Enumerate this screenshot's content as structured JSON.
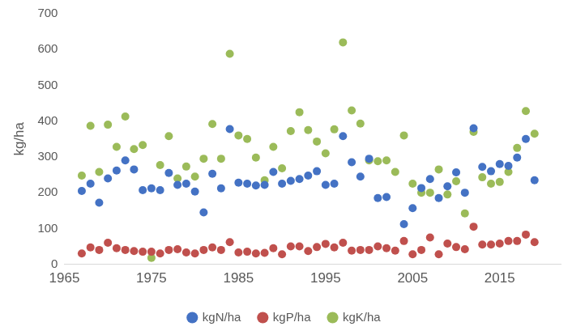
{
  "chart_data": {
    "type": "scatter",
    "y_label": "kg/ha",
    "x": [
      1967,
      1968,
      1969,
      1970,
      1971,
      1972,
      1973,
      1974,
      1975,
      1976,
      1977,
      1978,
      1979,
      1980,
      1981,
      1982,
      1983,
      1984,
      1985,
      1986,
      1987,
      1988,
      1989,
      1990,
      1991,
      1992,
      1993,
      1994,
      1995,
      1996,
      1997,
      1998,
      1999,
      2000,
      2001,
      2002,
      2003,
      2004,
      2005,
      2006,
      2007,
      2008,
      2009,
      2010,
      2011,
      2012,
      2013,
      2014,
      2015,
      2016,
      2017,
      2018,
      2019
    ],
    "series": [
      {
        "name": "kgN/ha",
        "color": "#4472c4",
        "marker": "circle",
        "values": [
          205,
          225,
          172,
          240,
          262,
          290,
          265,
          207,
          212,
          207,
          255,
          222,
          225,
          203,
          145,
          253,
          212,
          378,
          228,
          225,
          220,
          222,
          258,
          225,
          233,
          238,
          248,
          260,
          222,
          225,
          358,
          285,
          245,
          295,
          185,
          188,
          null,
          112,
          157,
          213,
          238,
          185,
          218,
          257,
          200,
          380,
          272,
          260,
          280,
          275,
          298,
          350,
          235
        ]
      },
      {
        "name": "kgP/ha",
        "color": "#c0504d",
        "marker": "circle",
        "values": [
          30,
          47,
          40,
          60,
          45,
          40,
          37,
          35,
          35,
          30,
          40,
          42,
          33,
          30,
          40,
          47,
          40,
          62,
          33,
          35,
          30,
          32,
          45,
          28,
          50,
          50,
          37,
          48,
          57,
          47,
          60,
          38,
          40,
          40,
          50,
          45,
          38,
          65,
          28,
          40,
          75,
          28,
          58,
          48,
          42,
          105,
          55,
          55,
          58,
          65,
          65,
          83,
          62
        ]
      },
      {
        "name": "kgK/ha",
        "color": "#9bbb59",
        "marker": "circle",
        "values": [
          248,
          387,
          258,
          390,
          328,
          413,
          322,
          333,
          18,
          277,
          358,
          240,
          273,
          245,
          295,
          392,
          295,
          588,
          360,
          350,
          298,
          235,
          328,
          268,
          372,
          425,
          375,
          343,
          310,
          377,
          620,
          430,
          393,
          290,
          288,
          290,
          258,
          360,
          225,
          200,
          200,
          265,
          195,
          232,
          142,
          370,
          243,
          225,
          230,
          258,
          325,
          428,
          365
        ]
      }
    ],
    "xlim": [
      1965,
      2022
    ],
    "xticks": [
      1965,
      1975,
      1985,
      1995,
      2005,
      2015
    ],
    "ylim": [
      0,
      700
    ],
    "yticks": [
      0,
      100,
      200,
      300,
      400,
      500,
      600,
      700
    ],
    "grid": false,
    "legend": "bottom"
  }
}
